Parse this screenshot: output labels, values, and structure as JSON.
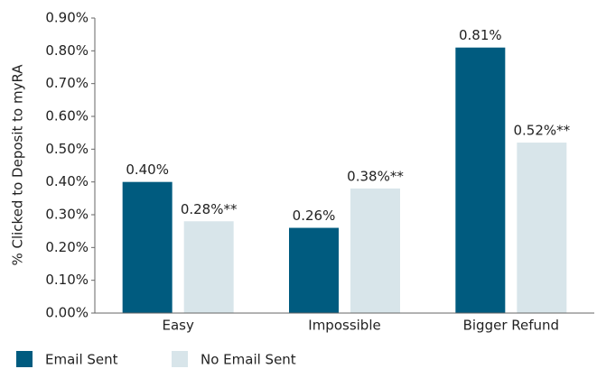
{
  "chart_data": {
    "type": "bar",
    "y_label": "% Clicked to Deposit to myRA",
    "categories": [
      "Easy",
      "Impossible",
      "Bigger Refund"
    ],
    "series": [
      {
        "name": "Email Sent",
        "color": "#005b7f",
        "values": [
          0.4,
          0.26,
          0.81
        ],
        "value_labels": [
          "0.40%",
          "0.26%",
          "0.81%"
        ]
      },
      {
        "name": "No Email Sent",
        "color": "#d8e5ea",
        "values": [
          0.28,
          0.38,
          0.52
        ],
        "value_labels": [
          "0.28%**",
          "0.38%**",
          "0.52%**"
        ]
      }
    ],
    "ylim": [
      0,
      0.9
    ],
    "yticks": [
      {
        "value": 0,
        "label": "0.00%"
      },
      {
        "value": 0.1,
        "label": "0.10%"
      },
      {
        "value": 0.2,
        "label": "0.20%"
      },
      {
        "value": 0.3,
        "label": "0.30%"
      },
      {
        "value": 0.4,
        "label": "0.40%"
      },
      {
        "value": 0.5,
        "label": "0.50%"
      },
      {
        "value": 0.6,
        "label": "0.60%"
      },
      {
        "value": 0.7,
        "label": "0.70%"
      },
      {
        "value": 0.8,
        "label": "0.80%"
      },
      {
        "value": 0.9,
        "label": "0.90%"
      }
    ],
    "legend": "bottom"
  }
}
